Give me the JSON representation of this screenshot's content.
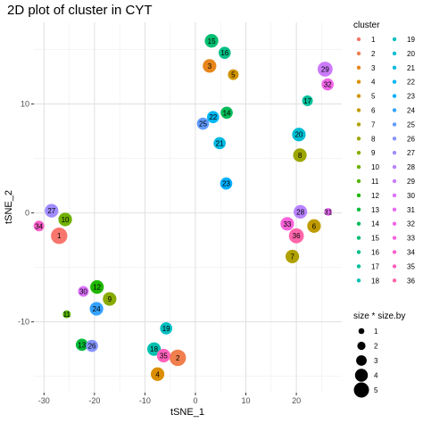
{
  "chart_data": {
    "type": "scatter",
    "title": "2D plot of cluster in CYT",
    "xlabel": "tSNE_1",
    "ylabel": "tSNE_2",
    "xlim": [
      -32,
      29
    ],
    "ylim": [
      -16.5,
      17.5
    ],
    "x_ticks": [
      -30,
      -20,
      -10,
      0,
      10,
      20
    ],
    "y_ticks": [
      -10,
      0,
      10
    ],
    "grid": true,
    "legend_position": "right",
    "color_legend": {
      "title": "cluster",
      "entries": [
        {
          "label": "1",
          "color": "#F8766D"
        },
        {
          "label": "2",
          "color": "#F07F4D"
        },
        {
          "label": "3",
          "color": "#E7861B"
        },
        {
          "label": "4",
          "color": "#DB8E00"
        },
        {
          "label": "5",
          "color": "#CF9400"
        },
        {
          "label": "6",
          "color": "#C09B00"
        },
        {
          "label": "7",
          "color": "#AFA100"
        },
        {
          "label": "8",
          "color": "#9DA700"
        },
        {
          "label": "9",
          "color": "#88AC00"
        },
        {
          "label": "10",
          "color": "#70B000"
        },
        {
          "label": "11",
          "color": "#53B400"
        },
        {
          "label": "12",
          "color": "#1EB800"
        },
        {
          "label": "13",
          "color": "#00BA38"
        },
        {
          "label": "14",
          "color": "#00BC58"
        },
        {
          "label": "15",
          "color": "#00BE71"
        },
        {
          "label": "16",
          "color": "#00BF87"
        },
        {
          "label": "17",
          "color": "#00C09B"
        },
        {
          "label": "18",
          "color": "#00C0AF"
        },
        {
          "label": "19",
          "color": "#00BFC2"
        },
        {
          "label": "20",
          "color": "#00BDD3"
        },
        {
          "label": "21",
          "color": "#00BAE3"
        },
        {
          "label": "22",
          "color": "#00B5F1"
        },
        {
          "label": "23",
          "color": "#00AFFC"
        },
        {
          "label": "24",
          "color": "#35A2FF"
        },
        {
          "label": "25",
          "color": "#619CFF"
        },
        {
          "label": "26",
          "color": "#8594FF"
        },
        {
          "label": "27",
          "color": "#A18CFF"
        },
        {
          "label": "28",
          "color": "#B983FF"
        },
        {
          "label": "29",
          "color": "#CB7BF9"
        },
        {
          "label": "30",
          "color": "#DB72FB"
        },
        {
          "label": "31",
          "color": "#E76BF3"
        },
        {
          "label": "32",
          "color": "#F166E8"
        },
        {
          "label": "33",
          "color": "#F863DB"
        },
        {
          "label": "34",
          "color": "#FC61CC"
        },
        {
          "label": "35",
          "color": "#FF62BC"
        },
        {
          "label": "36",
          "color": "#FF65AA"
        }
      ]
    },
    "size_legend": {
      "title": "size * size.by",
      "entries": [
        {
          "label": "1",
          "value": 1
        },
        {
          "label": "2",
          "value": 2
        },
        {
          "label": "3",
          "value": 3
        },
        {
          "label": "4",
          "value": 4
        },
        {
          "label": "5",
          "value": 5
        }
      ]
    },
    "points": [
      {
        "cluster": "1",
        "x": -27.0,
        "y": -2.1,
        "size": 4.5
      },
      {
        "cluster": "2",
        "x": -3.5,
        "y": -13.3,
        "size": 4.5
      },
      {
        "cluster": "3",
        "x": 2.8,
        "y": 13.5,
        "size": 3.5
      },
      {
        "cluster": "4",
        "x": -7.5,
        "y": -14.8,
        "size": 3.5
      },
      {
        "cluster": "5",
        "x": 7.5,
        "y": 12.7,
        "size": 2.5
      },
      {
        "cluster": "6",
        "x": 23.5,
        "y": -1.2,
        "size": 3.5
      },
      {
        "cluster": "7",
        "x": 19.2,
        "y": -4.0,
        "size": 3.5
      },
      {
        "cluster": "8",
        "x": 20.7,
        "y": 5.3,
        "size": 3.5
      },
      {
        "cluster": "9",
        "x": -17.0,
        "y": -7.9,
        "size": 3.5
      },
      {
        "cluster": "10",
        "x": -25.8,
        "y": -0.6,
        "size": 3.5
      },
      {
        "cluster": "11",
        "x": -25.5,
        "y": -9.3,
        "size": 1.5
      },
      {
        "cluster": "12",
        "x": -19.5,
        "y": -6.8,
        "size": 3.5
      },
      {
        "cluster": "13",
        "x": -22.5,
        "y": -12.1,
        "size": 3.0
      },
      {
        "cluster": "14",
        "x": 6.2,
        "y": 9.2,
        "size": 3.0
      },
      {
        "cluster": "15",
        "x": 3.2,
        "y": 15.8,
        "size": 3.5
      },
      {
        "cluster": "16",
        "x": 5.8,
        "y": 14.7,
        "size": 3.0
      },
      {
        "cluster": "17",
        "x": 22.2,
        "y": 10.3,
        "size": 2.5
      },
      {
        "cluster": "18",
        "x": -8.2,
        "y": -12.5,
        "size": 3.5
      },
      {
        "cluster": "19",
        "x": -5.8,
        "y": -10.6,
        "size": 3.0
      },
      {
        "cluster": "20",
        "x": 20.5,
        "y": 7.2,
        "size": 3.5
      },
      {
        "cluster": "21",
        "x": 4.8,
        "y": 6.4,
        "size": 3.0
      },
      {
        "cluster": "22",
        "x": 3.5,
        "y": 8.8,
        "size": 3.0
      },
      {
        "cluster": "23",
        "x": 6.1,
        "y": 2.7,
        "size": 3.0
      },
      {
        "cluster": "24",
        "x": -19.6,
        "y": -8.8,
        "size": 3.5
      },
      {
        "cluster": "25",
        "x": 1.5,
        "y": 8.2,
        "size": 3.0
      },
      {
        "cluster": "26",
        "x": -20.5,
        "y": -12.2,
        "size": 3.0
      },
      {
        "cluster": "27",
        "x": -28.5,
        "y": 0.2,
        "size": 3.5
      },
      {
        "cluster": "28",
        "x": 20.8,
        "y": 0.1,
        "size": 3.5
      },
      {
        "cluster": "29",
        "x": 25.7,
        "y": 13.2,
        "size": 4.0
      },
      {
        "cluster": "30",
        "x": -22.2,
        "y": -7.2,
        "size": 2.5
      },
      {
        "cluster": "31",
        "x": 26.3,
        "y": 0.1,
        "size": 1.5
      },
      {
        "cluster": "32",
        "x": 26.2,
        "y": 11.8,
        "size": 3.0
      },
      {
        "cluster": "33",
        "x": 18.2,
        "y": -1.0,
        "size": 3.5
      },
      {
        "cluster": "34",
        "x": -31.0,
        "y": -1.2,
        "size": 2.5
      },
      {
        "cluster": "35",
        "x": -6.3,
        "y": -13.1,
        "size": 3.5
      },
      {
        "cluster": "36",
        "x": 20.0,
        "y": -2.1,
        "size": 4.0
      }
    ]
  }
}
